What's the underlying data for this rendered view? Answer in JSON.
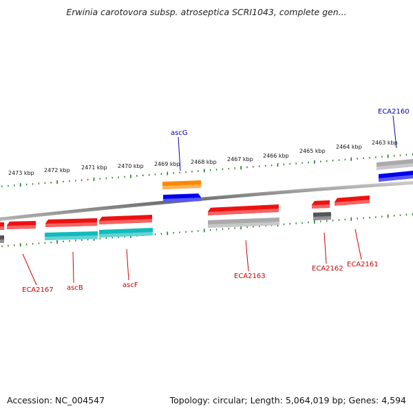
{
  "title": "Erwinia carotovora subsp. atroseptica SCRI1043, complete gen...",
  "footer": {
    "accession": "Accession: NC_004547",
    "summary": "Topology: circular; Length: 5,064,019 bp; Genes: 4,594"
  },
  "colors": {
    "forward_cds": "#0000ee",
    "reverse_cds": "#ee1111",
    "rna": "#ff8800",
    "cyan_feature": "#11bbbb",
    "pseudo_gray": "#aaaaaa",
    "dark_gray": "#555555",
    "tick": "#227722",
    "backbone": "#888888",
    "label_blue": "#0000aa",
    "label_red": "#cc0000"
  },
  "ruler": {
    "unit": "kbp",
    "tick_labels": [
      "2473 kbp",
      "2472 kbp",
      "2471 kbp",
      "2470 kbp",
      "2469 kbp",
      "2468 kbp",
      "2467 kbp",
      "2466 kbp",
      "2465 kbp",
      "2464 kbp",
      "2463 kbp"
    ]
  },
  "genes": [
    {
      "label": "ECA2160",
      "color": "label_blue"
    },
    {
      "label": "ascG",
      "color": "label_blue"
    },
    {
      "label": "ECA2167",
      "color": "label_red"
    },
    {
      "label": "ascB",
      "color": "label_red"
    },
    {
      "label": "ascF",
      "color": "label_red"
    },
    {
      "label": "ECA2163",
      "color": "label_red"
    },
    {
      "label": "ECA2162",
      "color": "label_red"
    },
    {
      "label": "ECA2161",
      "color": "label_red"
    }
  ]
}
